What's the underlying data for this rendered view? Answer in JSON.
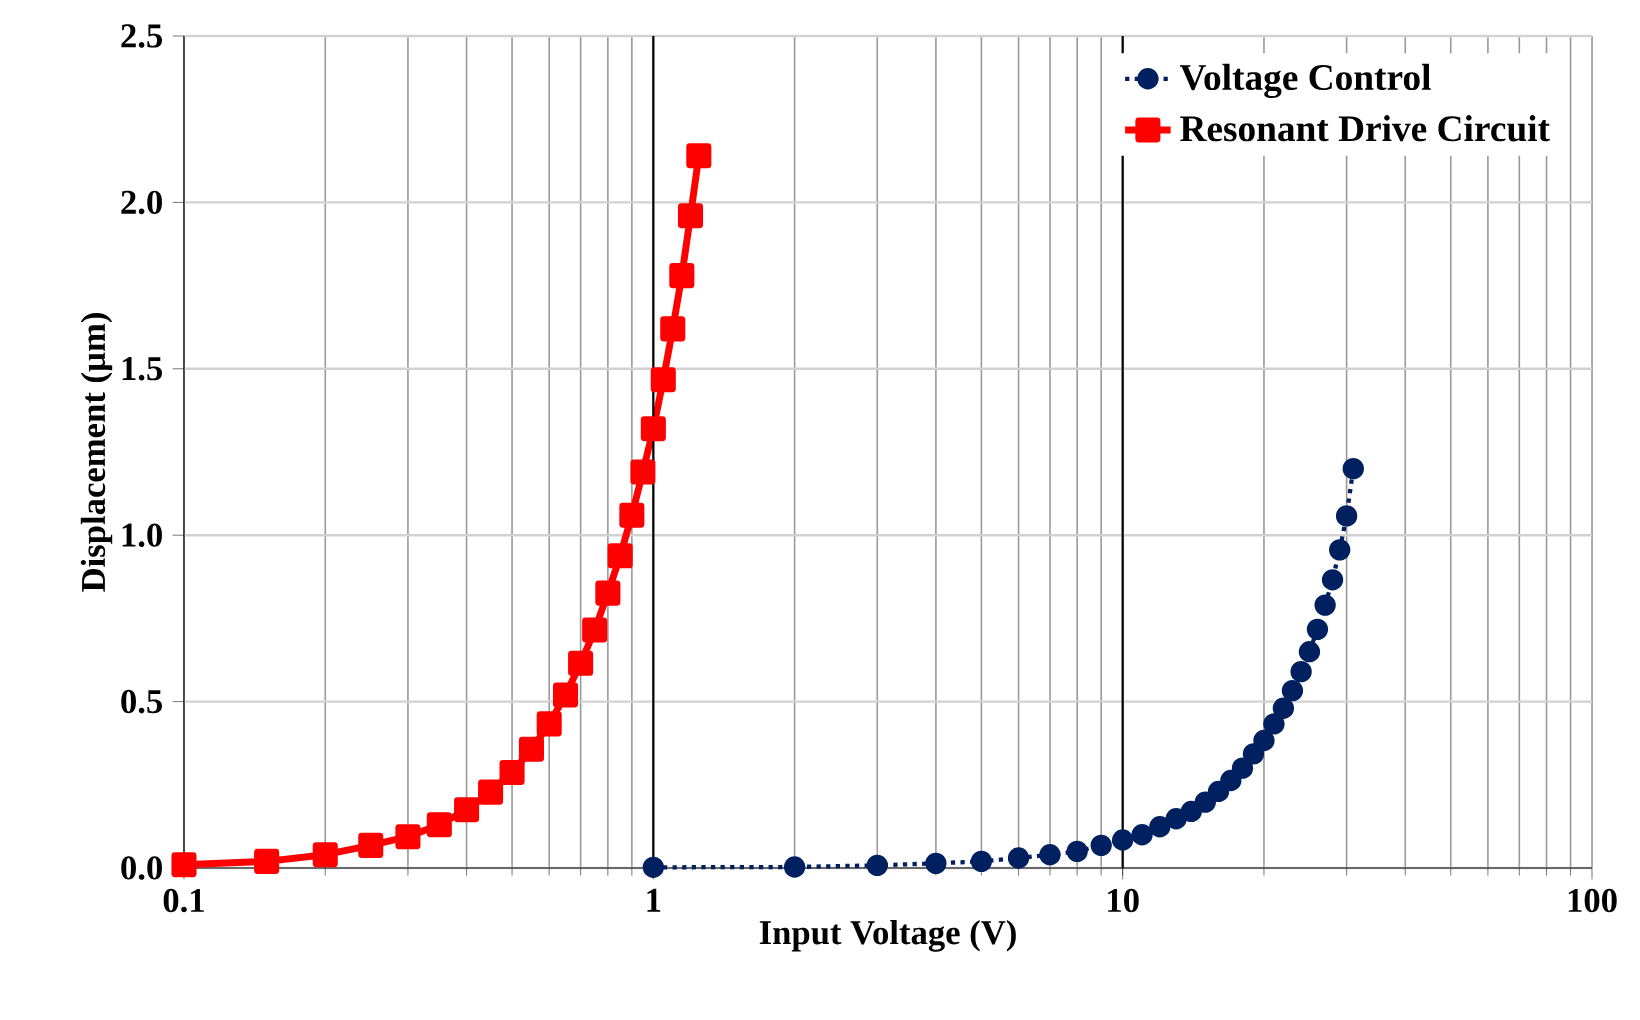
{
  "chart_data": {
    "type": "line",
    "xlabel": "Input Voltage (V)",
    "ylabel": "Displacement (µm)",
    "log": "x",
    "xlim": [
      0.1,
      100
    ],
    "xticks": [
      0.1,
      1,
      10,
      100
    ],
    "ylim": [
      0,
      2.5
    ],
    "yticks": [
      {
        "value": 0,
        "label": "0.0"
      },
      {
        "value": 0.5,
        "label": "0.5"
      },
      {
        "value": 1,
        "label": "1.0"
      },
      {
        "value": 1.5,
        "label": "1.5"
      },
      {
        "value": 2,
        "label": "2.0"
      },
      {
        "value": 2.5,
        "label": "2.5"
      }
    ],
    "grid": true,
    "legend": "top right",
    "series": [
      {
        "name": "Voltage Control",
        "color": "#002060",
        "marker": "circle",
        "line_style": "dotted",
        "x": [
          1,
          2,
          3,
          4,
          5,
          6,
          7,
          8,
          9,
          10,
          11,
          12,
          13,
          14,
          15,
          16,
          17,
          18,
          19,
          20,
          21,
          22,
          23,
          24,
          25,
          26,
          27,
          28,
          29,
          30,
          31
        ],
        "values": [
          0.002,
          0.003,
          0.008,
          0.014,
          0.02,
          0.03,
          0.04,
          0.05,
          0.068,
          0.084,
          0.1,
          0.124,
          0.148,
          0.17,
          0.198,
          0.23,
          0.263,
          0.3,
          0.343,
          0.383,
          0.433,
          0.48,
          0.533,
          0.59,
          0.65,
          0.717,
          0.79,
          0.866,
          0.956,
          1.058,
          1.2
        ]
      },
      {
        "name": "Resonant Drive Circuit",
        "color": "#ff0000",
        "marker": "square",
        "line_style": "solid",
        "x": [
          0.1,
          0.15,
          0.2,
          0.25,
          0.3,
          0.35,
          0.4,
          0.45,
          0.5,
          0.55,
          0.6,
          0.65,
          0.7,
          0.75,
          0.8,
          0.85,
          0.9,
          0.95,
          1.0,
          1.05,
          1.1,
          1.15,
          1.2,
          1.25
        ],
        "values": [
          0.01,
          0.02,
          0.04,
          0.068,
          0.094,
          0.13,
          0.175,
          0.228,
          0.287,
          0.357,
          0.433,
          0.52,
          0.615,
          0.715,
          0.826,
          0.938,
          1.06,
          1.19,
          1.32,
          1.467,
          1.62,
          1.78,
          1.96,
          2.14
        ]
      }
    ]
  }
}
